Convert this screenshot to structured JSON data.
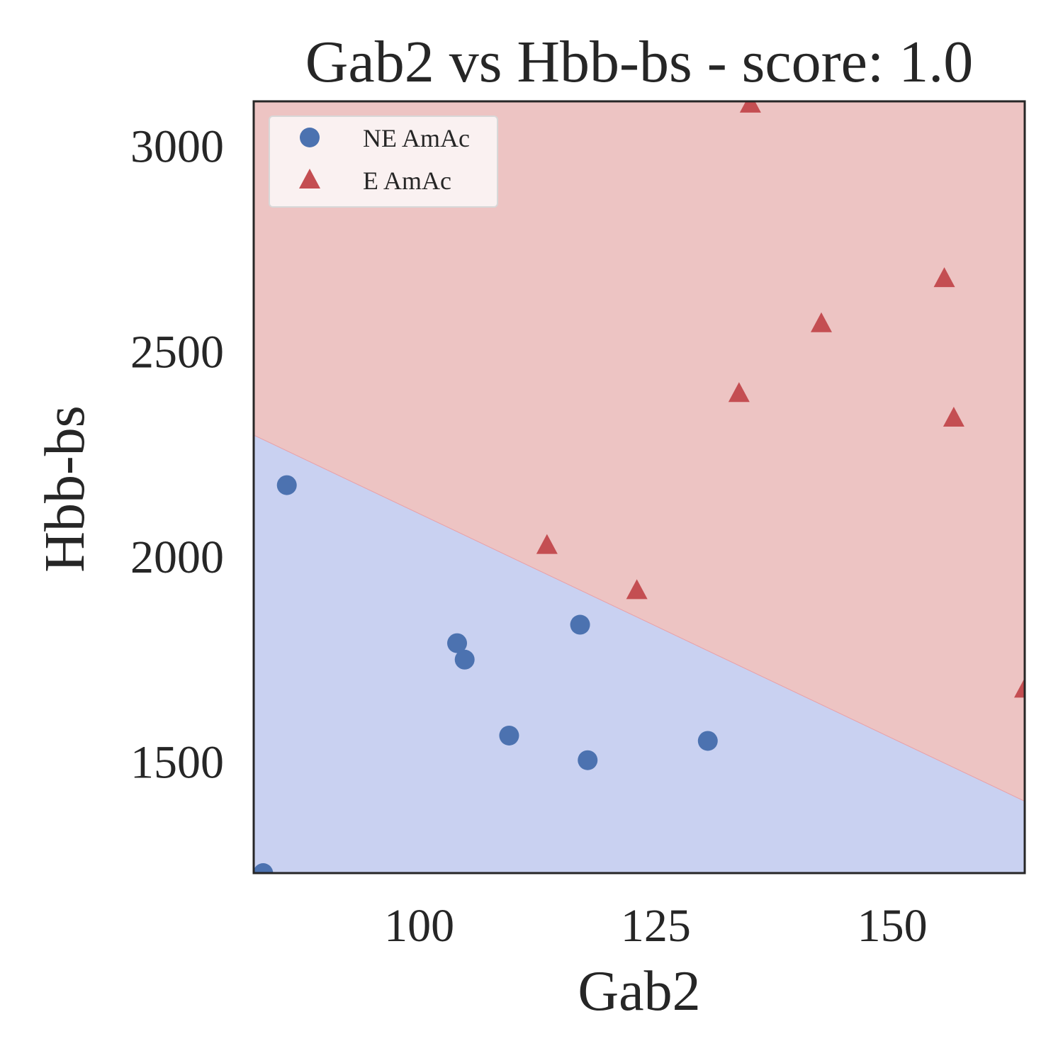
{
  "chart_data": {
    "type": "scatter",
    "title": "Gab2 vs Hbb-bs - score: 1.0",
    "xlabel": "Gab2",
    "ylabel": "Hbb-bs",
    "xlim": [
      82.5,
      164
    ],
    "ylim": [
      1230,
      3110
    ],
    "xticks": [
      100,
      125,
      150
    ],
    "yticks": [
      1500,
      2000,
      2500,
      3000
    ],
    "grid": false,
    "legend_placement": "upper left",
    "regions": {
      "description": "decision boundary line",
      "boundary": [
        [
          82.5,
          2297
        ],
        [
          164,
          1405
        ]
      ],
      "below_color": "#c9d1f1",
      "above_color": "#edc4c3"
    },
    "series": [
      {
        "name": "NE AmAc",
        "marker": "circle",
        "color": "#4c72b0",
        "points": [
          [
            83.5,
            1230
          ],
          [
            86,
            2175
          ],
          [
            104,
            1790
          ],
          [
            104.8,
            1750
          ],
          [
            109.5,
            1565
          ],
          [
            117,
            1835
          ],
          [
            117.8,
            1505
          ],
          [
            130.5,
            1552
          ]
        ]
      },
      {
        "name": "E AmAc",
        "marker": "triangle",
        "color": "#c44e52",
        "points": [
          [
            135,
            3105
          ],
          [
            113.5,
            2030
          ],
          [
            123,
            1920
          ],
          [
            133.8,
            2400
          ],
          [
            142.5,
            2570
          ],
          [
            155.5,
            2680
          ],
          [
            156.5,
            2340
          ],
          [
            164,
            1680
          ]
        ]
      }
    ]
  }
}
